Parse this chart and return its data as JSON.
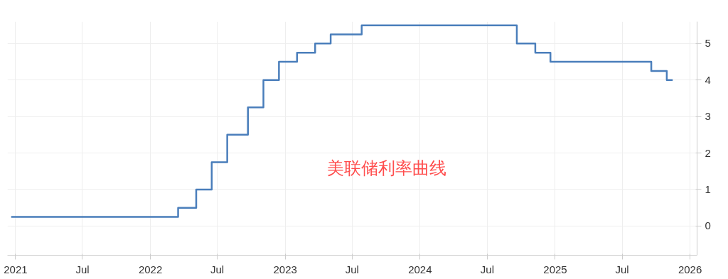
{
  "chart_data": {
    "type": "step",
    "x": [
      "2020-12-20",
      "2022-03-17",
      "2022-05-05",
      "2022-06-16",
      "2022-07-28",
      "2022-09-22",
      "2022-11-03",
      "2022-12-15",
      "2023-02-02",
      "2023-03-23",
      "2023-05-04",
      "2023-07-27",
      "2024-09-19",
      "2024-11-08",
      "2024-12-19",
      "2025-09-18",
      "2025-10-30",
      "2025-11-15"
    ],
    "series": [
      {
        "color": "#4a7ebb",
        "values": [
          0.25,
          0.5,
          1.0,
          1.75,
          2.5,
          3.25,
          4.0,
          4.5,
          4.75,
          5.0,
          5.25,
          5.5,
          5.0,
          4.75,
          4.5,
          4.25,
          4.0,
          4.0
        ]
      }
    ],
    "xlim": [
      "2020-12-10",
      "2026-01-20"
    ],
    "xticks": [
      {
        "value": "2021-01-01",
        "label": "2021"
      },
      {
        "value": "2021-07-01",
        "label": "Jul"
      },
      {
        "value": "2022-01-01",
        "label": "2022"
      },
      {
        "value": "2022-07-01",
        "label": "Jul"
      },
      {
        "value": "2023-01-01",
        "label": "2023"
      },
      {
        "value": "2023-07-01",
        "label": "Jul"
      },
      {
        "value": "2024-01-01",
        "label": "2024"
      },
      {
        "value": "2024-07-01",
        "label": "Jul"
      },
      {
        "value": "2025-01-01",
        "label": "2025"
      },
      {
        "value": "2025-07-01",
        "label": "Jul"
      },
      {
        "value": "2026-01-01",
        "label": "2026"
      }
    ],
    "ylim": [
      -0.8,
      5.6
    ],
    "yticks": [
      0,
      1,
      2,
      3,
      4,
      5
    ],
    "grid": true,
    "annotations": [
      "美联储利率曲线"
    ]
  }
}
